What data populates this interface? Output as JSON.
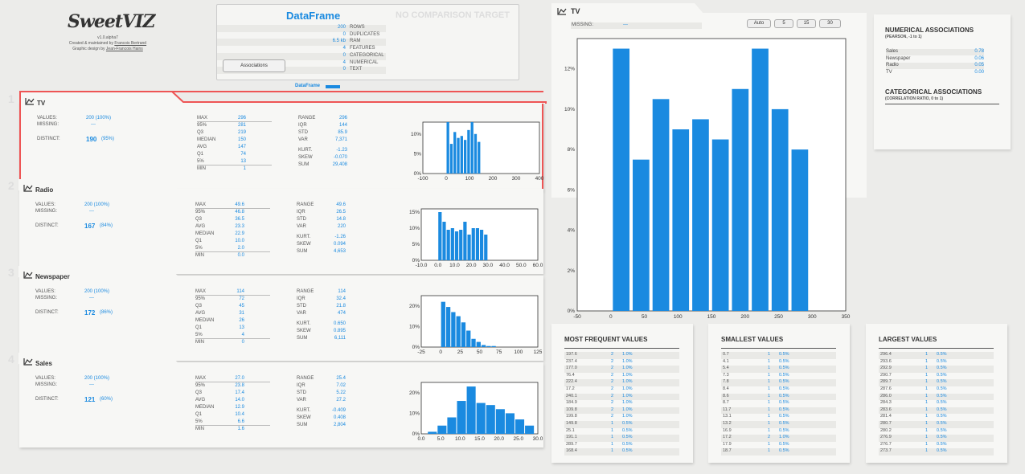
{
  "app": {
    "logo": "SweetVIZ",
    "version": "v1.0.alpha7",
    "credit1_prefix": "Created & maintained by",
    "credit1_name": "Francois Bertrand",
    "credit2_prefix": "Graphic design by",
    "credit2_name": "Jean-Francois Hains"
  },
  "dataframe": {
    "title": "DataFrame",
    "no_comparison": "NO COMPARISON TARGET",
    "rows": [
      {
        "value": "200",
        "label": "ROWS"
      },
      {
        "value": "0",
        "label": "DUPLICATES"
      },
      {
        "value": "6.5 kb",
        "label": "RAM"
      },
      {
        "value": "4",
        "label": "FEATURES"
      },
      {
        "value": "0",
        "label": "CATEGORICAL"
      },
      {
        "value": "4",
        "label": "NUMERICAL"
      },
      {
        "value": "0",
        "label": "TEXT"
      }
    ],
    "associations_button": "Associations",
    "legend_label": "DataFrame"
  },
  "colors": {
    "accent": "#1a8ae0",
    "selected_border": "#e55555"
  },
  "features": [
    {
      "index": "1",
      "name": "TV",
      "icon": "line-chart-icon",
      "values_label": "VALUES:",
      "values": "200 (100%)",
      "missing_label": "MISSING:",
      "missing": "---",
      "distinct_label": "DISTINCT:",
      "distinct": "190",
      "distinct_pct": "(95%)",
      "stats_left": [
        [
          "MAX",
          "296"
        ],
        [
          "95%",
          "281"
        ],
        [
          "Q3",
          "219"
        ],
        [
          "MEDIAN",
          "150"
        ],
        [
          "AVG",
          "147"
        ],
        [
          "Q1",
          "74"
        ],
        [
          "5%",
          "13"
        ],
        [
          "MIN",
          "1"
        ]
      ],
      "stats_right": [
        [
          "RANGE",
          "296"
        ],
        [
          "IQR",
          "144"
        ],
        [
          "STD",
          "85.9"
        ],
        [
          "VAR",
          "7,371"
        ],
        [
          "KURT.",
          "-1.23"
        ],
        [
          "SKEW",
          "-0.070"
        ],
        [
          "SUM",
          "29,408"
        ]
      ],
      "chart_data": {
        "type": "bar",
        "x_ticks": [
          "-100",
          "0",
          "100",
          "200",
          "300",
          "400"
        ],
        "xlim": [
          -100,
          400
        ],
        "y_ticks": [
          "0%",
          "5%",
          "10%"
        ],
        "ylim": [
          0,
          13
        ],
        "bin_start": 0,
        "bin_width": 14.8,
        "values": [
          13,
          7.5,
          10.5,
          9,
          9.5,
          8.5,
          11,
          13,
          10,
          8
        ]
      }
    },
    {
      "index": "2",
      "name": "Radio",
      "icon": "line-chart-icon",
      "values_label": "VALUES:",
      "values": "200 (100%)",
      "missing_label": "MISSING:",
      "missing": "---",
      "distinct_label": "DISTINCT:",
      "distinct": "167",
      "distinct_pct": "(84%)",
      "stats_left": [
        [
          "MAX",
          "49.6"
        ],
        [
          "95%",
          "46.8"
        ],
        [
          "Q3",
          "36.5"
        ],
        [
          "AVG",
          "23.3"
        ],
        [
          "MEDIAN",
          "22.9"
        ],
        [
          "Q1",
          "10.0"
        ],
        [
          "5%",
          "2.0"
        ],
        [
          "MIN",
          "0.0"
        ]
      ],
      "stats_right": [
        [
          "RANGE",
          "49.6"
        ],
        [
          "IQR",
          "26.5"
        ],
        [
          "STD",
          "14.8"
        ],
        [
          "VAR",
          "220"
        ],
        [
          "KURT.",
          "-1.26"
        ],
        [
          "SKEW",
          "0.094"
        ],
        [
          "SUM",
          "4,653"
        ]
      ],
      "chart_data": {
        "type": "bar",
        "x_ticks": [
          "-10.0",
          "0.0",
          "10.0",
          "20.0",
          "30.0",
          "40.0",
          "50.0",
          "60.0"
        ],
        "xlim": [
          -10,
          60
        ],
        "y_ticks": [
          "0%",
          "5%",
          "10%",
          "15%"
        ],
        "ylim": [
          0,
          16
        ],
        "bin_start": 0,
        "bin_width": 2.5,
        "values": [
          15,
          12,
          9.5,
          10,
          9,
          9.5,
          12,
          8,
          10,
          10,
          9.5,
          8
        ]
      }
    },
    {
      "index": "3",
      "name": "Newspaper",
      "icon": "line-chart-icon",
      "values_label": "VALUES:",
      "values": "200 (100%)",
      "missing_label": "MISSING:",
      "missing": "---",
      "distinct_label": "DISTINCT:",
      "distinct": "172",
      "distinct_pct": "(86%)",
      "stats_left": [
        [
          "MAX",
          "114"
        ],
        [
          "95%",
          "72"
        ],
        [
          "Q3",
          "45"
        ],
        [
          "AVG",
          "31"
        ],
        [
          "MEDIAN",
          "26"
        ],
        [
          "Q1",
          "13"
        ],
        [
          "5%",
          "4"
        ],
        [
          "MIN",
          "0"
        ]
      ],
      "stats_right": [
        [
          "RANGE",
          "114"
        ],
        [
          "IQR",
          "32.4"
        ],
        [
          "STD",
          "21.8"
        ],
        [
          "VAR",
          "474"
        ],
        [
          "KURT.",
          "0.650"
        ],
        [
          "SKEW",
          "0.895"
        ],
        [
          "SUM",
          "6,111"
        ]
      ],
      "chart_data": {
        "type": "bar",
        "x_ticks": [
          "-25",
          "0",
          "25",
          "50",
          "75",
          "100",
          "125"
        ],
        "xlim": [
          -25,
          125
        ],
        "y_ticks": [
          "0%",
          "10%",
          "20%"
        ],
        "ylim": [
          0,
          25
        ],
        "bin_start": 0,
        "bin_width": 6.5,
        "values": [
          22,
          19.5,
          17,
          15,
          12,
          8,
          4,
          2.5,
          1,
          0.5,
          0.5
        ]
      }
    },
    {
      "index": "4",
      "name": "Sales",
      "icon": "line-chart-icon",
      "values_label": "VALUES:",
      "values": "200 (100%)",
      "missing_label": "MISSING:",
      "missing": "---",
      "distinct_label": "DISTINCT:",
      "distinct": "121",
      "distinct_pct": "(60%)",
      "stats_left": [
        [
          "MAX",
          "27.0"
        ],
        [
          "95%",
          "23.8"
        ],
        [
          "Q3",
          "17.4"
        ],
        [
          "AVG",
          "14.0"
        ],
        [
          "MEDIAN",
          "12.9"
        ],
        [
          "Q1",
          "10.4"
        ],
        [
          "5%",
          "6.6"
        ],
        [
          "MIN",
          "1.6"
        ]
      ],
      "stats_right": [
        [
          "RANGE",
          "25.4"
        ],
        [
          "IQR",
          "7.02"
        ],
        [
          "STD",
          "5.22"
        ],
        [
          "VAR",
          "27.2"
        ],
        [
          "KURT.",
          "-0.409"
        ],
        [
          "SKEW",
          "0.408"
        ],
        [
          "SUM",
          "2,804"
        ]
      ],
      "chart_data": {
        "type": "bar",
        "x_ticks": [
          "0.0",
          "5.0",
          "10.0",
          "15.0",
          "20.0",
          "25.0",
          "30.0"
        ],
        "xlim": [
          0,
          30
        ],
        "y_ticks": [
          "0%",
          "10%",
          "20%"
        ],
        "ylim": [
          0,
          25
        ],
        "bin_start": 1.6,
        "bin_width": 2.5,
        "values": [
          1,
          4,
          8,
          16,
          23,
          15,
          14,
          12,
          10,
          7,
          4
        ]
      }
    }
  ],
  "detail": {
    "title": "TV",
    "missing_label": "MISSING:",
    "missing": "---",
    "bin_buttons": [
      "Auto",
      "5",
      "15",
      "30"
    ],
    "chart_data": {
      "type": "bar",
      "x_ticks": [
        "-50",
        "0",
        "50",
        "100",
        "150",
        "200",
        "250",
        "300",
        "350"
      ],
      "xlim": [
        -50,
        350
      ],
      "y_ticks": [
        "0%",
        "2%",
        "4%",
        "6%",
        "8%",
        "10%",
        "12%"
      ],
      "ylim": [
        0,
        13.5
      ],
      "bin_start": 0.7,
      "bin_width": 29.57,
      "values": [
        13,
        7.5,
        10.5,
        9,
        9.5,
        8.5,
        11,
        13,
        10,
        8
      ]
    }
  },
  "associations": {
    "numerical_title": "NUMERICAL ASSOCIATIONS",
    "numerical_sub": "(PEARSON, -1 to 1)",
    "rows": [
      [
        "Sales",
        "0.78"
      ],
      [
        "Newspaper",
        "0.06"
      ],
      [
        "Radio",
        "0.05"
      ],
      [
        "TV",
        "0.00"
      ]
    ],
    "categorical_title": "CATEGORICAL ASSOCIATIONS",
    "categorical_sub": "(CORRELATION RATIO, 0 to 1)"
  },
  "value_panels": [
    {
      "title": "MOST FREQUENT VALUES",
      "rows": [
        [
          "197.6",
          "2",
          "1.0%"
        ],
        [
          "237.4",
          "2",
          "1.0%"
        ],
        [
          "177.0",
          "2",
          "1.0%"
        ],
        [
          "76.4",
          "2",
          "1.0%"
        ],
        [
          "222.4",
          "2",
          "1.0%"
        ],
        [
          "17.2",
          "2",
          "1.0%"
        ],
        [
          "240.1",
          "2",
          "1.0%"
        ],
        [
          "184.9",
          "2",
          "1.0%"
        ],
        [
          "109.8",
          "2",
          "1.0%"
        ],
        [
          "199.8",
          "2",
          "1.0%"
        ],
        [
          "149.8",
          "1",
          "0.5%"
        ],
        [
          "25.1",
          "1",
          "0.5%"
        ],
        [
          "191.1",
          "1",
          "0.5%"
        ],
        [
          "289.7",
          "1",
          "0.5%"
        ],
        [
          "168.4",
          "1",
          "0.5%"
        ]
      ]
    },
    {
      "title": "SMALLEST VALUES",
      "rows": [
        [
          "0.7",
          "1",
          "0.5%"
        ],
        [
          "4.1",
          "1",
          "0.5%"
        ],
        [
          "5.4",
          "1",
          "0.5%"
        ],
        [
          "7.3",
          "1",
          "0.5%"
        ],
        [
          "7.8",
          "1",
          "0.5%"
        ],
        [
          "8.4",
          "1",
          "0.5%"
        ],
        [
          "8.6",
          "1",
          "0.5%"
        ],
        [
          "8.7",
          "1",
          "0.5%"
        ],
        [
          "11.7",
          "1",
          "0.5%"
        ],
        [
          "13.1",
          "1",
          "0.5%"
        ],
        [
          "13.2",
          "1",
          "0.5%"
        ],
        [
          "16.9",
          "1",
          "0.5%"
        ],
        [
          "17.2",
          "2",
          "1.0%"
        ],
        [
          "17.9",
          "1",
          "0.5%"
        ],
        [
          "18.7",
          "1",
          "0.5%"
        ]
      ]
    },
    {
      "title": "LARGEST VALUES",
      "rows": [
        [
          "296.4",
          "1",
          "0.5%"
        ],
        [
          "293.6",
          "1",
          "0.5%"
        ],
        [
          "292.9",
          "1",
          "0.5%"
        ],
        [
          "290.7",
          "1",
          "0.5%"
        ],
        [
          "289.7",
          "1",
          "0.5%"
        ],
        [
          "287.6",
          "1",
          "0.5%"
        ],
        [
          "286.0",
          "1",
          "0.5%"
        ],
        [
          "284.3",
          "1",
          "0.5%"
        ],
        [
          "283.6",
          "1",
          "0.5%"
        ],
        [
          "281.4",
          "1",
          "0.5%"
        ],
        [
          "280.7",
          "1",
          "0.5%"
        ],
        [
          "280.2",
          "1",
          "0.5%"
        ],
        [
          "276.9",
          "1",
          "0.5%"
        ],
        [
          "276.7",
          "1",
          "0.5%"
        ],
        [
          "273.7",
          "1",
          "0.5%"
        ]
      ]
    }
  ]
}
